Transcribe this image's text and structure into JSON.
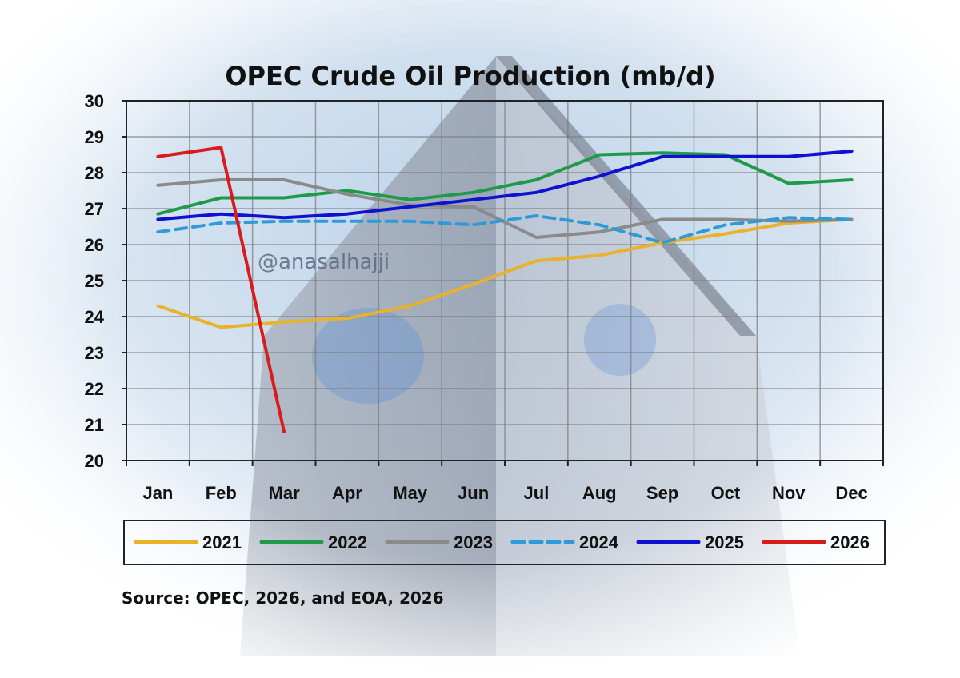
{
  "watermark": "@anasalhajji",
  "source": "Source: OPEC, 2026, and EOA, 2026",
  "chart_data": {
    "type": "line",
    "title": "OPEC Crude Oil Production (mb/d)",
    "xlabel": "",
    "ylabel": "",
    "ylim": [
      20,
      30
    ],
    "yticks": [
      20,
      21,
      22,
      23,
      24,
      25,
      26,
      27,
      28,
      29,
      30
    ],
    "categories": [
      "Jan",
      "Feb",
      "Mar",
      "Apr",
      "May",
      "Jun",
      "Jul",
      "Aug",
      "Sep",
      "Oct",
      "Nov",
      "Dec"
    ],
    "grid": true,
    "legend_position": "bottom",
    "series": [
      {
        "name": "2021",
        "color": "#e8b32a",
        "dashed": false,
        "values": [
          24.3,
          23.7,
          23.85,
          23.95,
          24.3,
          24.9,
          25.55,
          25.7,
          26.05,
          26.3,
          26.6,
          26.7
        ]
      },
      {
        "name": "2022",
        "color": "#1f9a4a",
        "dashed": false,
        "values": [
          26.85,
          27.3,
          27.3,
          27.5,
          27.25,
          27.45,
          27.8,
          28.5,
          28.55,
          28.5,
          27.7,
          27.8
        ]
      },
      {
        "name": "2023",
        "color": "#8a8a8a",
        "dashed": false,
        "values": [
          27.65,
          27.8,
          27.8,
          27.4,
          27.1,
          27.05,
          26.2,
          26.35,
          26.7,
          26.7,
          26.65,
          26.7
        ]
      },
      {
        "name": "2024",
        "color": "#2e9ad6",
        "dashed": true,
        "values": [
          26.35,
          26.6,
          26.65,
          26.65,
          26.65,
          26.55,
          26.8,
          26.55,
          26.05,
          26.55,
          26.75,
          26.7
        ]
      },
      {
        "name": "2025",
        "color": "#1010d0",
        "dashed": false,
        "values": [
          26.7,
          26.85,
          26.75,
          26.85,
          27.05,
          27.25,
          27.45,
          27.9,
          28.45,
          28.45,
          28.45,
          28.6
        ]
      },
      {
        "name": "2026",
        "color": "#d81c1c",
        "dashed": false,
        "values": [
          28.45,
          28.7,
          20.8,
          null,
          null,
          null,
          null,
          null,
          null,
          null,
          null,
          null
        ]
      }
    ]
  }
}
